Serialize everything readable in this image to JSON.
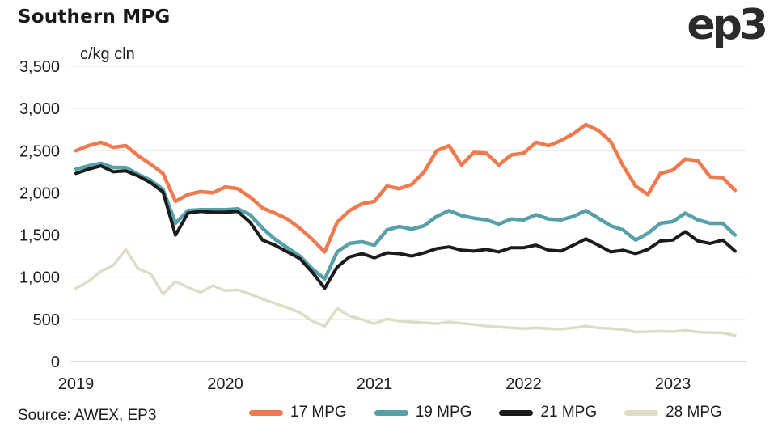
{
  "header": {
    "title": "Southern MPG",
    "logo_text": "ep3"
  },
  "footer": {
    "source": "Source: AWEX, EP3"
  },
  "chart_data": {
    "type": "line",
    "title": "Southern MPG",
    "ylabel": "c/kg cln",
    "xlabel": "",
    "grid": true,
    "legend_position": "bottom",
    "ylim": [
      0,
      3500
    ],
    "y_ticks": [
      0,
      500,
      1000,
      1500,
      2000,
      2500,
      3000,
      3500
    ],
    "y_tick_labels": [
      "0",
      "500",
      "1,000",
      "1,500",
      "2,000",
      "2,500",
      "3,000",
      "3,500"
    ],
    "x_ticks": [
      2019,
      2020,
      2021,
      2022,
      2023
    ],
    "x_tick_labels": [
      "2019",
      "2020",
      "2021",
      "2022",
      "2023"
    ],
    "x_start_year": 2019.0,
    "x_step": "monthly",
    "series": [
      {
        "name": "17 MPG",
        "color": "#F07A4F",
        "values": [
          2500,
          2560,
          2600,
          2540,
          2560,
          2440,
          2340,
          2230,
          1900,
          1980,
          2015,
          2000,
          2070,
          2050,
          1950,
          1820,
          1760,
          1690,
          1580,
          1450,
          1300,
          1650,
          1790,
          1870,
          1900,
          2080,
          2050,
          2100,
          2250,
          2500,
          2560,
          2330,
          2480,
          2470,
          2330,
          2450,
          2470,
          2600,
          2560,
          2620,
          2700,
          2810,
          2740,
          2610,
          2320,
          2080,
          1980,
          2230,
          2270,
          2400,
          2380,
          2190,
          2180,
          2030
        ]
      },
      {
        "name": "19 MPG",
        "color": "#56A1A9",
        "values": [
          2280,
          2320,
          2350,
          2300,
          2300,
          2220,
          2150,
          2040,
          1640,
          1790,
          1800,
          1800,
          1800,
          1810,
          1740,
          1580,
          1450,
          1350,
          1250,
          1100,
          980,
          1300,
          1400,
          1420,
          1380,
          1560,
          1600,
          1570,
          1610,
          1720,
          1790,
          1730,
          1700,
          1680,
          1630,
          1690,
          1680,
          1740,
          1690,
          1680,
          1720,
          1790,
          1700,
          1610,
          1560,
          1440,
          1520,
          1640,
          1660,
          1760,
          1680,
          1640,
          1640,
          1500
        ]
      },
      {
        "name": "21 MPG",
        "color": "#1B1B1B",
        "values": [
          2230,
          2280,
          2320,
          2250,
          2260,
          2200,
          2120,
          2010,
          1500,
          1760,
          1780,
          1770,
          1770,
          1780,
          1650,
          1440,
          1380,
          1300,
          1220,
          1060,
          870,
          1120,
          1240,
          1280,
          1230,
          1290,
          1280,
          1250,
          1290,
          1340,
          1360,
          1320,
          1310,
          1330,
          1300,
          1350,
          1350,
          1380,
          1320,
          1310,
          1380,
          1455,
          1380,
          1300,
          1320,
          1280,
          1330,
          1430,
          1440,
          1540,
          1430,
          1400,
          1440,
          1310
        ]
      },
      {
        "name": "28 MPG",
        "color": "#DDDCC5",
        "values": [
          870,
          950,
          1070,
          1140,
          1330,
          1100,
          1040,
          800,
          950,
          880,
          820,
          900,
          840,
          850,
          800,
          740,
          690,
          640,
          580,
          480,
          420,
          630,
          540,
          500,
          450,
          505,
          480,
          470,
          460,
          450,
          470,
          455,
          440,
          420,
          410,
          400,
          390,
          400,
          390,
          385,
          400,
          420,
          400,
          390,
          380,
          350,
          355,
          360,
          355,
          370,
          350,
          345,
          340,
          310
        ]
      }
    ],
    "style": {
      "grid_color": "#EDEBE1",
      "axis_color": "#C8C7C1",
      "text_color": "#1d1d1b",
      "background": "#ffffff"
    }
  }
}
